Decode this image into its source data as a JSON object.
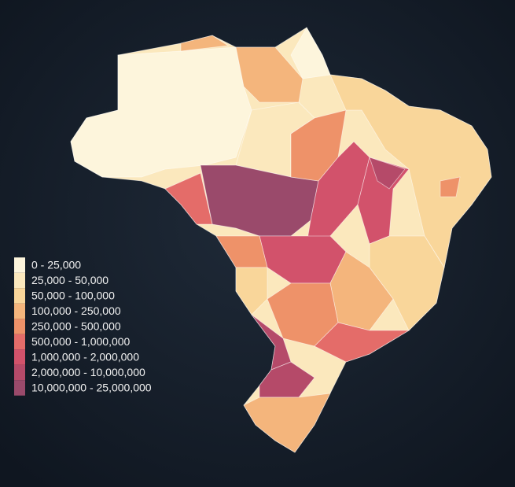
{
  "legend": {
    "items": [
      {
        "label": "0 - 25,000",
        "color": "#fdf5dc"
      },
      {
        "label": "25,000 - 50,000",
        "color": "#fbe8bd"
      },
      {
        "label": "50,000 - 100,000",
        "color": "#f9d69a"
      },
      {
        "label": "100,000 - 250,000",
        "color": "#f4b57c"
      },
      {
        "label": "250,000 - 500,000",
        "color": "#ee9269"
      },
      {
        "label": "500,000 - 1,000,000",
        "color": "#e46c69"
      },
      {
        "label": "1,000,000 - 2,000,000",
        "color": "#d2526b"
      },
      {
        "label": "2,000,000 - 10,000,000",
        "color": "#b54a69"
      },
      {
        "label": "10,000,000 - 25,000,000",
        "color": "#9a4a6b"
      }
    ]
  }
}
